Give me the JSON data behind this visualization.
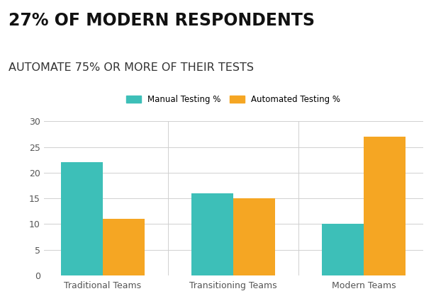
{
  "title_line1": "27% OF MODERN RESPONDENTS",
  "title_line2": "AUTOMATE 75% OR MORE OF THEIR TESTS",
  "categories": [
    "Traditional Teams",
    "Transitioning Teams",
    "Modern Teams"
  ],
  "manual_values": [
    22,
    16,
    10
  ],
  "automated_values": [
    11,
    15,
    27
  ],
  "manual_color": "#3DBFB8",
  "automated_color": "#F5A623",
  "legend_manual": "Manual Testing %",
  "legend_automated": "Automated Testing %",
  "ylim": [
    0,
    30
  ],
  "yticks": [
    0,
    5,
    10,
    15,
    20,
    25,
    30
  ],
  "background_color": "#ffffff",
  "grid_color": "#d0d0d0",
  "title1_fontsize": 17,
  "title2_fontsize": 11.5,
  "bar_width": 0.32,
  "title1_color": "#111111",
  "title2_color": "#333333",
  "tick_fontsize": 9,
  "legend_fontsize": 8.5
}
